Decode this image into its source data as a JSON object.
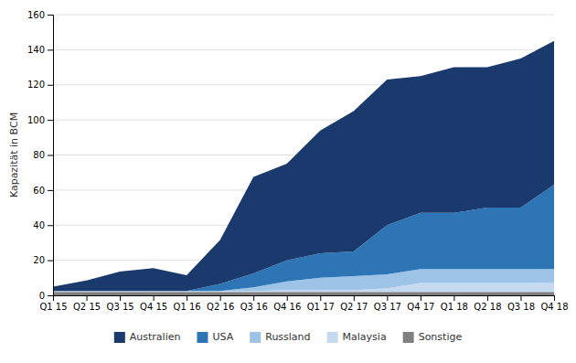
{
  "chart_data": {
    "type": "area",
    "stacked": true,
    "categories": [
      "Q1 15",
      "Q2 15",
      "Q3 15",
      "Q4 15",
      "Q1 16",
      "Q2 16",
      "Q3 16",
      "Q4 16",
      "Q1 17",
      "Q2 17",
      "Q3 17",
      "Q4 17",
      "Q1 18",
      "Q2 18",
      "Q3 18",
      "Q4 18"
    ],
    "series": [
      {
        "name": "Sonstige",
        "color": "#808080",
        "values": [
          2,
          2,
          2,
          2,
          2,
          2,
          2,
          2,
          2,
          2,
          2,
          2,
          2,
          2,
          2,
          2
        ]
      },
      {
        "name": "Malaysia",
        "color": "#c5d9f1",
        "values": [
          0.5,
          0.5,
          0.5,
          0.5,
          0.5,
          0.5,
          0.5,
          1,
          1,
          1,
          2,
          5,
          5,
          5,
          5,
          5
        ]
      },
      {
        "name": "Russland",
        "color": "#9dc3e6",
        "values": [
          0,
          0,
          0,
          0,
          0,
          0,
          2,
          5,
          7,
          8,
          8,
          8,
          8,
          8,
          8,
          8
        ]
      },
      {
        "name": "USA",
        "color": "#2e75b6",
        "values": [
          0,
          0,
          0,
          0,
          0,
          4,
          8,
          12,
          14,
          14,
          28,
          32,
          32,
          35,
          35,
          48
        ]
      },
      {
        "name": "Australien",
        "color": "#1a3a6e",
        "values": [
          2.5,
          6,
          11,
          13,
          9,
          25,
          55,
          55,
          70,
          80,
          83,
          78,
          83,
          80,
          85,
          82
        ]
      }
    ],
    "ylabel": "Kapazität in BCM",
    "ylim": [
      0,
      160
    ],
    "yticks": [
      0,
      20,
      40,
      60,
      80,
      100,
      120,
      140,
      160
    ],
    "grid": true,
    "legend": "bottom"
  }
}
